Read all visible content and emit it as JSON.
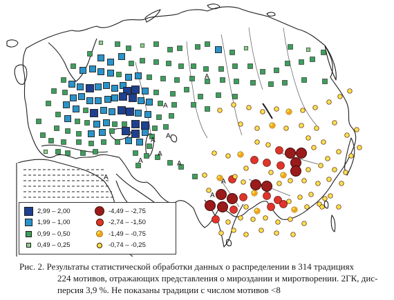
{
  "legend": {
    "squares": [
      {
        "range": "2,99 – 2,00",
        "color": "#1f3f8f"
      },
      {
        "range": "1,99 – 1,00",
        "color": "#2a93c8"
      },
      {
        "range": "0,99 – 0,50",
        "color": "#3e9e5c"
      },
      {
        "range": "0,49 – 0,25",
        "color": "#8fcf8c"
      }
    ],
    "circles": [
      {
        "range": "-4,49 – -2,75",
        "color": "#9b1b1b"
      },
      {
        "range": "-2,74 – -1,50",
        "color": "#e0342b"
      },
      {
        "range": "-1,49 – -0,75",
        "color": "#f2a51a"
      },
      {
        "range": "-0,74 – -0,25",
        "color": "#f7e24a"
      }
    ]
  },
  "marker_A": "A",
  "caption": {
    "line1": "Рис. 2. Результаты статистической обработки данных о распределении в 314 традициях",
    "line2": "224 мотивов, отражающих представления о мироздании и миротворении. 2ГК, дис-",
    "line3": "персия 3,9 %. Не показаны традиции с числом мотивов <8"
  }
}
